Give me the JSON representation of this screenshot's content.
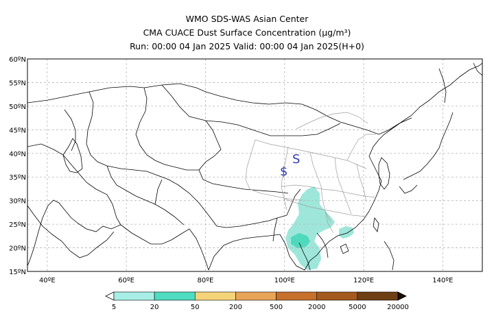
{
  "header": {
    "line1": "WMO SDS-WAS Asian Center",
    "line2": "CMA CUACE Dust Surface Concentration (μg/m³)",
    "line3": "Run: 00:00 04 Jan 2025    Valid: 00:00 04 Jan 2025(H+0)"
  },
  "map": {
    "lon_range": [
      35,
      150
    ],
    "lat_range": [
      15,
      60
    ],
    "lat_ticks": [
      "15ºN",
      "20ºN",
      "25ºN",
      "30ºN",
      "35ºN",
      "40ºN",
      "45ºN",
      "50ºN",
      "55ºN",
      "60ºN"
    ],
    "lon_ticks": [
      "40ºE",
      "60ºE",
      "80ºE",
      "100ºE",
      "120ºE",
      "140ºE"
    ],
    "grid": true,
    "symbols": [
      "S",
      "$"
    ]
  },
  "colorbar": {
    "labels": [
      "5",
      "20",
      "50",
      "200",
      "500",
      "2000",
      "5000",
      "20000"
    ],
    "colors": [
      "#ffffff",
      "#a8eee6",
      "#4fdcc0",
      "#f5d479",
      "#e8a457",
      "#c6702b",
      "#a45a1e",
      "#6e3e14",
      "#3a230e",
      "#1a0f05"
    ]
  }
}
